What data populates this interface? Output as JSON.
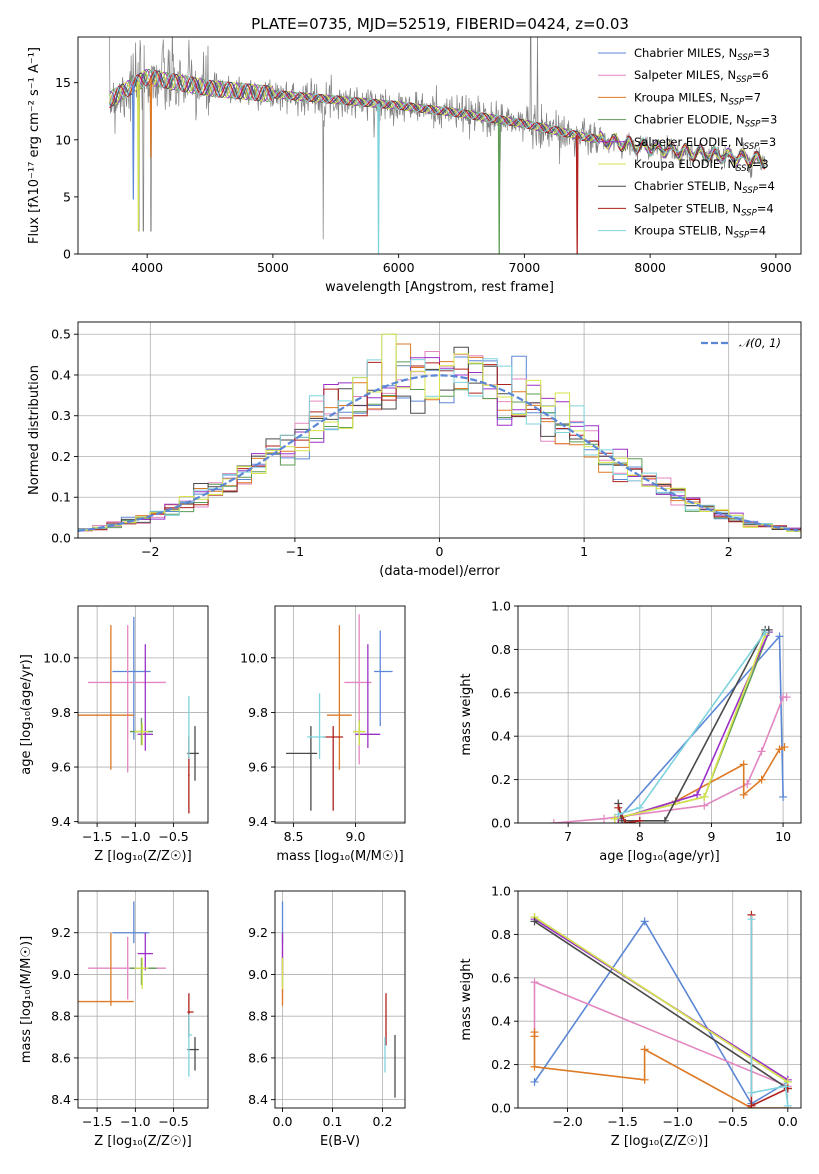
{
  "figure": {
    "title": "PLATE=0735, MJD=52519, FIBERID=0424, z=0.03"
  },
  "series_styles": [
    {
      "name": "Chabrier MILES, N_SSP=3",
      "label_main": "Chabrier MILES, N",
      "label_sub": "SSP",
      "label_tail": "=3",
      "color": "#5b87d6"
    },
    {
      "name": "Salpeter MILES, N_SSP=6",
      "label_main": "Salpeter MILES, N",
      "label_sub": "SSP",
      "label_tail": "=6",
      "color": "#e387c1"
    },
    {
      "name": "Kroupa MILES, N_SSP=7",
      "label_main": "Kroupa MILES, N",
      "label_sub": "SSP",
      "label_tail": "=7",
      "color": "#dd7a25"
    },
    {
      "name": "Chabrier ELODIE, N_SSP=3",
      "label_main": "Chabrier ELODIE, N",
      "label_sub": "SSP",
      "label_tail": "=3",
      "color": "#5d9c55"
    },
    {
      "name": "Salpeter ELODIE, N_SSP=3",
      "label_main": "Salpeter ELODIE, N",
      "label_sub": "SSP",
      "label_tail": "=3",
      "color": "#9b30c8"
    },
    {
      "name": "Kroupa ELODIE, N_SSP=3",
      "label_main": "Kroupa ELODIE, N",
      "label_sub": "SSP",
      "label_tail": "=3",
      "color": "#d7e34a"
    },
    {
      "name": "Chabrier STELIB, N_SSP=4",
      "label_main": "Chabrier STELIB, N",
      "label_sub": "SSP",
      "label_tail": "=4",
      "color": "#4a4a4a"
    },
    {
      "name": "Salpeter STELIB, N_SSP=4",
      "label_main": "Salpeter STELIB, N",
      "label_sub": "SSP",
      "label_tail": "=4",
      "color": "#b0201c"
    },
    {
      "name": "Kroupa STELIB, N_SSP=4",
      "label_main": "Kroupa STELIB, N",
      "label_sub": "SSP",
      "label_tail": "=4",
      "color": "#7fd3dd"
    }
  ],
  "chart_data": [
    {
      "id": "spectrum",
      "type": "line",
      "title": "PLATE=0735, MJD=52519, FIBERID=0424, z=0.03",
      "xlabel": "wavelength [Angstrom, rest frame]",
      "ylabel": "Flux [fλ10⁻¹⁷ erg cm⁻² s⁻¹ A⁻¹]",
      "xlim": [
        3450,
        9200
      ],
      "ylim": [
        0,
        19
      ],
      "xticks": [
        4000,
        5000,
        6000,
        7000,
        8000,
        9000
      ],
      "yticks": [
        0,
        5,
        10,
        15
      ],
      "grid": false,
      "legend": "top-right",
      "data_color": "#808080",
      "continuum": {
        "x": [
          3700,
          4000,
          4500,
          5000,
          5500,
          6000,
          6500,
          7000,
          7500,
          8000,
          8500,
          8900
        ],
        "y": [
          13.5,
          15.5,
          14.5,
          14.0,
          13.5,
          13.0,
          12.3,
          11.4,
          10.2,
          9.3,
          8.7,
          8.2
        ]
      },
      "absorption_features": [
        3934,
        3969,
        4030,
        5840,
        6800,
        7420
      ],
      "spikes": [
        5400,
        7050,
        7105
      ]
    },
    {
      "id": "residual-histogram",
      "type": "histogram",
      "xlabel": "(data-model)/error",
      "ylabel": "Normed distribution",
      "xlim": [
        -2.5,
        2.5
      ],
      "ylim": [
        0,
        0.53
      ],
      "xticks": [
        -2,
        -1,
        0,
        1,
        2
      ],
      "yticks": [
        0.0,
        0.1,
        0.2,
        0.3,
        0.4,
        0.5
      ],
      "grid": true,
      "legend": "top-right",
      "reference": {
        "name": "N(0,1)",
        "legend_text": "𝒩(0, 1)",
        "type": "gaussian",
        "mean": 0,
        "sigma": 1,
        "color": "#5b87d6"
      },
      "bin_width": 0.1
    },
    {
      "id": "age-vs-Z",
      "type": "errorbar",
      "xlabel": "Z [log₁₀(Z/Z☉)]",
      "ylabel": "age  [log₁₀(age/yr)]",
      "xlim": [
        -1.75,
        -0.05
      ],
      "ylim": [
        9.395,
        10.19
      ],
      "xticks": [
        -1.5,
        -1.0,
        -0.5
      ],
      "yticks": [
        9.4,
        9.6,
        9.8,
        10.0
      ],
      "grid": true,
      "points": [
        {
          "series": 0,
          "x": -1.02,
          "xerr": [
            0.28,
            0.22
          ],
          "y": 9.95,
          "yerr": [
            0.25,
            0.2
          ]
        },
        {
          "series": 1,
          "x": -1.1,
          "xerr": [
            0.52,
            0.5
          ],
          "y": 9.91,
          "yerr": [
            0.33,
            0.21
          ]
        },
        {
          "series": 2,
          "x": -1.32,
          "xerr": [
            0.5,
            0.3
          ],
          "y": 9.79,
          "yerr": [
            0.2,
            0.33
          ]
        },
        {
          "series": 3,
          "x": -0.92,
          "xerr": [
            0.15,
            0.15
          ],
          "y": 9.73,
          "yerr": [
            0.05,
            0.05
          ]
        },
        {
          "series": 4,
          "x": -0.87,
          "xerr": [
            0.1,
            0.1
          ],
          "y": 9.72,
          "yerr": [
            0.06,
            0.33
          ]
        },
        {
          "series": 5,
          "x": -0.91,
          "xerr": [
            0.1,
            0.08
          ],
          "y": 9.73,
          "yerr": [
            0.05,
            0.03
          ]
        },
        {
          "series": 6,
          "x": -0.22,
          "xerr": [
            0.1,
            0.05
          ],
          "y": 9.65,
          "yerr": [
            0.1,
            0.1
          ]
        },
        {
          "series": 7,
          "x": -0.3,
          "xerr": [
            0.01,
            0.01
          ],
          "y": 9.57,
          "yerr": [
            0.14,
            0.14
          ]
        },
        {
          "series": 8,
          "x": -0.3,
          "xerr": [
            0.01,
            0.01
          ],
          "y": 9.71,
          "yerr": [
            0.08,
            0.15
          ]
        }
      ]
    },
    {
      "id": "age-vs-mass",
      "type": "errorbar",
      "xlabel": "mass [log₁₀(M/M☉)]",
      "ylabel": "",
      "xlim": [
        8.35,
        9.4
      ],
      "ylim": [
        9.395,
        10.19
      ],
      "xticks": [
        8.5,
        9.0
      ],
      "yticks": [
        9.4,
        9.6,
        9.8,
        10.0
      ],
      "grid": true,
      "points": [
        {
          "series": 0,
          "x": 9.2,
          "xerr": [
            0.05,
            0.1
          ],
          "y": 9.95,
          "yerr": [
            0.2,
            0.15
          ]
        },
        {
          "series": 1,
          "x": 9.03,
          "xerr": [
            0.12,
            0.1
          ],
          "y": 9.91,
          "yerr": [
            0.3,
            0.25
          ]
        },
        {
          "series": 2,
          "x": 8.87,
          "xerr": [
            0.1,
            0.1
          ],
          "y": 9.79,
          "yerr": [
            0.2,
            0.33
          ]
        },
        {
          "series": 3,
          "x": 9.03,
          "xerr": [
            0.05,
            0.05
          ],
          "y": 9.73,
          "yerr": [
            0.04,
            0.04
          ]
        },
        {
          "series": 4,
          "x": 9.1,
          "xerr": [
            0.1,
            0.1
          ],
          "y": 9.72,
          "yerr": [
            0.05,
            0.33
          ]
        },
        {
          "series": 5,
          "x": 9.03,
          "xerr": [
            0.05,
            0.05
          ],
          "y": 9.73,
          "yerr": [
            0.05,
            0.04
          ]
        },
        {
          "series": 6,
          "x": 8.64,
          "xerr": [
            0.2,
            0.05
          ],
          "y": 9.65,
          "yerr": [
            0.21,
            0.1
          ]
        },
        {
          "series": 7,
          "x": 8.82,
          "xerr": [
            0.08,
            0.08
          ],
          "y": 9.71,
          "yerr": [
            0.27,
            0.04
          ]
        },
        {
          "series": 8,
          "x": 8.71,
          "xerr": [
            0.1,
            0.05
          ],
          "y": 9.71,
          "yerr": [
            0.08,
            0.16
          ]
        }
      ]
    },
    {
      "id": "mass-weight-vs-age",
      "type": "line",
      "xlabel": "age  [log₁₀(age/yr)]",
      "ylabel": "mass weight",
      "xlim": [
        6.3,
        10.25
      ],
      "ylim": [
        0,
        1.0
      ],
      "xticks": [
        7,
        8,
        9,
        10
      ],
      "yticks": [
        0.0,
        0.2,
        0.4,
        0.6,
        0.8,
        1.0
      ],
      "grid": true,
      "series": [
        {
          "series": 0,
          "x": [
            7.7,
            9.95,
            10.0
          ],
          "y": [
            0.02,
            0.86,
            0.12
          ]
        },
        {
          "series": 1,
          "x": [
            6.8,
            7.5,
            8.9,
            9.5,
            9.7,
            10.0,
            10.05
          ],
          "y": [
            0.0,
            0.02,
            0.08,
            0.18,
            0.33,
            0.58,
            0.58
          ]
        },
        {
          "series": 2,
          "x": [
            7.7,
            8.5,
            9.45,
            9.45,
            9.7,
            9.95,
            10.02
          ],
          "y": [
            0.02,
            0.1,
            0.27,
            0.13,
            0.2,
            0.34,
            0.35
          ]
        },
        {
          "series": 3,
          "x": [
            7.65,
            8.9,
            9.8
          ],
          "y": [
            0.02,
            0.12,
            0.88
          ]
        },
        {
          "series": 4,
          "x": [
            7.7,
            8.8,
            9.8
          ],
          "y": [
            0.02,
            0.13,
            0.88
          ]
        },
        {
          "series": 5,
          "x": [
            7.65,
            8.9,
            9.75
          ],
          "y": [
            0.02,
            0.12,
            0.87
          ]
        },
        {
          "series": 6,
          "x": [
            7.7,
            7.75,
            8.35,
            9.75,
            9.8
          ],
          "y": [
            0.09,
            0.01,
            0.01,
            0.89,
            0.89
          ]
        },
        {
          "series": 7,
          "x": [
            7.7,
            7.8,
            8.0
          ],
          "y": [
            0.07,
            0.0,
            0.01
          ]
        },
        {
          "series": 8,
          "x": [
            7.7,
            8.0,
            9.75
          ],
          "y": [
            0.04,
            0.07,
            0.88
          ]
        }
      ]
    },
    {
      "id": "mass-vs-Z",
      "type": "errorbar",
      "xlabel": "Z [log₁₀(Z/Z☉)]",
      "ylabel": "mass [log₁₀(M/M☉)]",
      "xlim": [
        -1.75,
        -0.05
      ],
      "ylim": [
        8.36,
        9.4
      ],
      "xticks": [
        -1.5,
        -1.0,
        -0.5
      ],
      "yticks": [
        8.4,
        8.6,
        8.8,
        9.0,
        9.2
      ],
      "grid": true,
      "points": [
        {
          "series": 0,
          "x": -1.02,
          "xerr": [
            0.28,
            0.2
          ],
          "y": 9.2,
          "yerr": [
            0.05,
            0.15
          ]
        },
        {
          "series": 1,
          "x": -1.1,
          "xerr": [
            0.52,
            0.5
          ],
          "y": 9.03,
          "yerr": [
            0.15,
            0.15
          ]
        },
        {
          "series": 2,
          "x": -1.32,
          "xerr": [
            0.5,
            0.3
          ],
          "y": 8.87,
          "yerr": [
            0.02,
            0.33
          ]
        },
        {
          "series": 3,
          "x": -0.92,
          "xerr": [
            0.15,
            0.2
          ],
          "y": 9.03,
          "yerr": [
            0.08,
            0.05
          ]
        },
        {
          "series": 4,
          "x": -0.87,
          "xerr": [
            0.1,
            0.1
          ],
          "y": 9.1,
          "yerr": [
            0.08,
            0.1
          ]
        },
        {
          "series": 5,
          "x": -0.91,
          "xerr": [
            0.1,
            0.08
          ],
          "y": 9.03,
          "yerr": [
            0.1,
            0.05
          ]
        },
        {
          "series": 6,
          "x": -0.22,
          "xerr": [
            0.1,
            0.05
          ],
          "y": 8.64,
          "yerr": [
            0.1,
            0.06
          ]
        },
        {
          "series": 7,
          "x": -0.3,
          "xerr": [
            0.02,
            0.06
          ],
          "y": 8.82,
          "yerr": [
            0.12,
            0.09
          ]
        },
        {
          "series": 8,
          "x": -0.3,
          "xerr": [
            0.01,
            0.04
          ],
          "y": 8.71,
          "yerr": [
            0.2,
            0.1
          ]
        }
      ]
    },
    {
      "id": "mass-vs-ebv",
      "type": "errorbar",
      "xlabel": "E(B-V)",
      "ylabel": "",
      "xlim": [
        -0.015,
        0.245
      ],
      "ylim": [
        8.36,
        9.4
      ],
      "xticks": [
        0.0,
        0.1,
        0.2
      ],
      "yticks": [
        8.4,
        8.6,
        8.8,
        9.0,
        9.2
      ],
      "grid": true,
      "points": [
        {
          "series": 0,
          "x": 0.0,
          "xerr": [
            0,
            0
          ],
          "y": 9.2,
          "yerr": [
            0.05,
            0.15
          ]
        },
        {
          "series": 1,
          "x": 0.0,
          "xerr": [
            0,
            0
          ],
          "y": 9.03,
          "yerr": [
            0.15,
            0.15
          ]
        },
        {
          "series": 2,
          "x": 0.0,
          "xerr": [
            0,
            0
          ],
          "y": 8.9,
          "yerr": [
            0.05,
            0.05
          ]
        },
        {
          "series": 3,
          "x": 0.0,
          "xerr": [
            0,
            0
          ],
          "y": 9.03,
          "yerr": [
            0.08,
            0.05
          ]
        },
        {
          "series": 4,
          "x": 0.0,
          "xerr": [
            0,
            0
          ],
          "y": 9.1,
          "yerr": [
            0.1,
            0.1
          ]
        },
        {
          "series": 5,
          "x": 0.0,
          "xerr": [
            0,
            0
          ],
          "y": 9.03,
          "yerr": [
            0.1,
            0.05
          ]
        },
        {
          "series": 6,
          "x": 0.225,
          "xerr": [
            0,
            0
          ],
          "y": 8.55,
          "yerr": [
            0.14,
            0.16
          ]
        },
        {
          "series": 7,
          "x": 0.207,
          "xerr": [
            0,
            0
          ],
          "y": 8.78,
          "yerr": [
            0.12,
            0.13
          ]
        },
        {
          "series": 8,
          "x": 0.205,
          "xerr": [
            0,
            0
          ],
          "y": 8.6,
          "yerr": [
            0.07,
            0.1
          ]
        }
      ]
    },
    {
      "id": "mass-weight-vs-Z",
      "type": "line",
      "xlabel": "Z [log₁₀(Z/Z☉)]",
      "ylabel": "mass weight",
      "xlim": [
        -2.45,
        0.12
      ],
      "ylim": [
        0,
        1.0
      ],
      "xticks": [
        -2.0,
        -1.5,
        -1.0,
        -0.5,
        0.0
      ],
      "yticks": [
        0.0,
        0.2,
        0.4,
        0.6,
        0.8,
        1.0
      ],
      "grid": true,
      "series": [
        {
          "series": 0,
          "x": [
            -2.3,
            -1.3,
            -0.33,
            0.0
          ],
          "y": [
            0.12,
            0.86,
            0.02,
            0.12
          ]
        },
        {
          "series": 1,
          "x": [
            -2.3,
            -2.3,
            0.0
          ],
          "y": [
            0.35,
            0.58,
            0.1
          ]
        },
        {
          "series": 2,
          "x": [
            -2.3,
            -2.3,
            -2.3,
            -1.3,
            -1.3,
            -0.33,
            0.0
          ],
          "y": [
            0.35,
            0.33,
            0.19,
            0.13,
            0.27,
            0.0,
            0.0
          ]
        },
        {
          "series": 3,
          "x": [
            -2.3,
            0.0
          ],
          "y": [
            0.88,
            0.12
          ]
        },
        {
          "series": 4,
          "x": [
            -2.3,
            0.0
          ],
          "y": [
            0.87,
            0.13
          ]
        },
        {
          "series": 5,
          "x": [
            -2.3,
            0.0
          ],
          "y": [
            0.88,
            0.12
          ]
        },
        {
          "series": 6,
          "x": [
            -2.3,
            0.0
          ],
          "y": [
            0.86,
            0.09
          ]
        },
        {
          "series": 7,
          "x": [
            -0.33,
            -0.33,
            0.0
          ],
          "y": [
            0.89,
            0.01,
            0.09
          ]
        },
        {
          "series": 8,
          "x": [
            -0.33,
            -0.33,
            -0.02,
            0.0
          ],
          "y": [
            0.87,
            0.07,
            0.1,
            0.01
          ]
        }
      ]
    }
  ]
}
